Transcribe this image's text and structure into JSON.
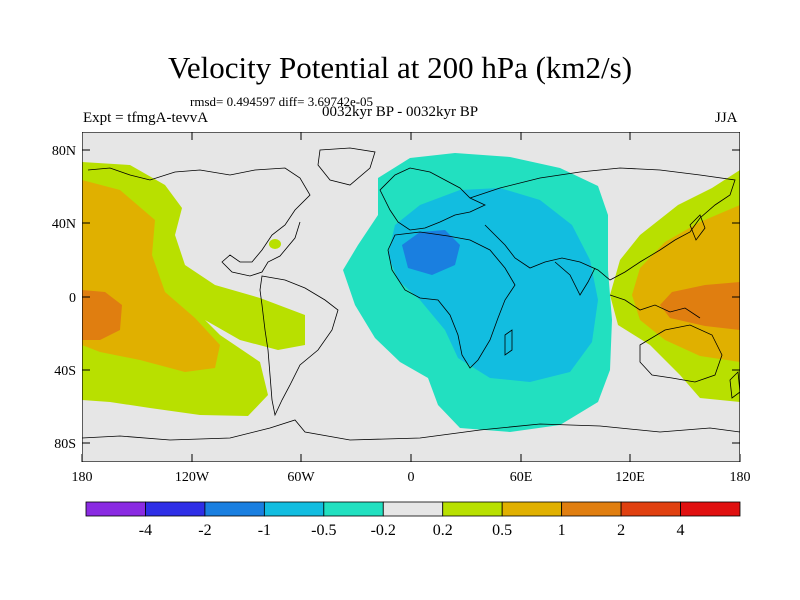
{
  "header": {
    "title": "Velocity Potential at 200 hPa (km2/s)",
    "stats": "rmsd= 0.494597  diff= 3.69742e-05",
    "experiment": "Expt = tfmgA-tevvA",
    "period": "0032kyr BP - 0032kyr BP",
    "season": "JJA"
  },
  "axes": {
    "lat_ticks": [
      "80N",
      "40N",
      "0",
      "40S",
      "80S"
    ],
    "lon_ticks": [
      "180",
      "120W",
      "60W",
      "0",
      "60E",
      "120E",
      "180"
    ]
  },
  "colorbar": {
    "labels": [
      "-4",
      "-2",
      "-1",
      "-0.5",
      "-0.2",
      "0.2",
      "0.5",
      "1",
      "2",
      "4"
    ],
    "colors": [
      "#8a2be2",
      "#2e2ee6",
      "#1a7fe0",
      "#12bde0",
      "#22e0c0",
      "#e6e6e6",
      "#b8e000",
      "#e0b000",
      "#e07e10",
      "#e04010",
      "#e01010"
    ]
  },
  "map": {
    "land_color": "#e6e6e6",
    "coast_color": "#000000"
  }
}
